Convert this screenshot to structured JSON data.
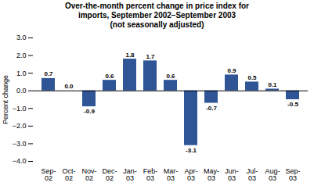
{
  "chart_data": {
    "type": "bar",
    "title": "Over-the-month percent change in price index for\nimports, September 2002–September 2003\n(not seasonally adjusted)",
    "categories": [
      "Sep-\n02",
      "Oct-\n02",
      "Nov-\n02",
      "Dec-\n02",
      "Jan-\n03",
      "Feb-\n03",
      "Mar-\n03",
      "Apr-\n03",
      "May-\n03",
      "Jun-\n03",
      "Jul-\n03",
      "Aug-\n03",
      "Sep-\n03"
    ],
    "values": [
      0.7,
      0.0,
      -0.9,
      0.6,
      1.8,
      1.7,
      0.6,
      -3.1,
      -0.7,
      0.9,
      0.5,
      0.1,
      -0.5
    ],
    "value_labels": [
      "0.7",
      "0.0",
      "-0.9",
      "0.6",
      "1.8",
      "1.7",
      "0.6",
      "-3.1",
      "-0.7",
      "0.9",
      "0.5",
      "0.1",
      "-0.5"
    ],
    "data_labels": true,
    "color": "#2f5597",
    "ylabel": "Percent change",
    "ylim": [
      -4,
      3
    ],
    "yticks": [
      -4,
      -3,
      -2,
      -1,
      0,
      1,
      2,
      3
    ],
    "grid": false
  }
}
